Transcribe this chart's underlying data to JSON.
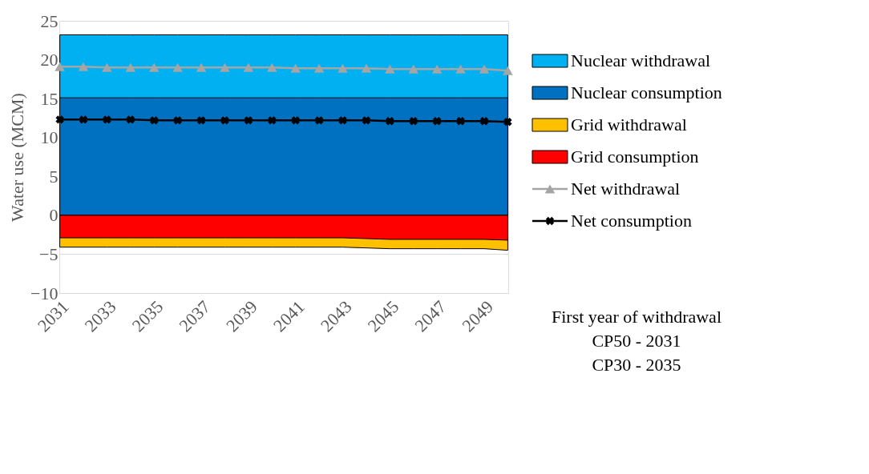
{
  "chart_data": {
    "type": "area",
    "ylabel": "Water use (MCM)",
    "categories": [
      "2031",
      null,
      "2033",
      null,
      "2035",
      null,
      "2037",
      null,
      "2039",
      null,
      "2041",
      null,
      "2043",
      null,
      "2045",
      null,
      "2047",
      null,
      "2049",
      null
    ],
    "ylim": [
      -10,
      25
    ],
    "yticks": [
      -10,
      -5,
      0,
      5,
      10,
      15,
      20,
      25
    ],
    "grid": "y",
    "legend": "right",
    "series": [
      {
        "name": "Nuclear withdrawal",
        "color": "#00b0f0",
        "values": [
          23.2,
          23.2,
          23.2,
          23.2,
          23.2,
          23.2,
          23.2,
          23.2,
          23.2,
          23.2,
          23.2,
          23.2,
          23.2,
          23.2,
          23.2,
          23.2,
          23.2,
          23.2,
          23.2,
          23.2
        ]
      },
      {
        "name": "Nuclear consumption",
        "color": "#0070c0",
        "values": [
          15.1,
          15.1,
          15.1,
          15.1,
          15.1,
          15.1,
          15.1,
          15.1,
          15.1,
          15.1,
          15.1,
          15.1,
          15.1,
          15.1,
          15.1,
          15.1,
          15.1,
          15.1,
          15.1,
          15.1
        ]
      },
      {
        "name": "Grid withdrawal",
        "color": "#ffc000",
        "values": [
          -4.1,
          -4.1,
          -4.1,
          -4.1,
          -4.1,
          -4.1,
          -4.1,
          -4.1,
          -4.1,
          -4.1,
          -4.1,
          -4.1,
          -4.1,
          -4.2,
          -4.3,
          -4.3,
          -4.3,
          -4.3,
          -4.3,
          -4.5
        ]
      },
      {
        "name": "Grid consumption",
        "color": "#ff0000",
        "values": [
          -2.9,
          -2.9,
          -2.9,
          -2.9,
          -2.9,
          -2.9,
          -2.9,
          -2.9,
          -2.9,
          -2.9,
          -2.9,
          -2.9,
          -2.9,
          -3.0,
          -3.1,
          -3.1,
          -3.1,
          -3.1,
          -3.1,
          -3.2
        ]
      },
      {
        "name": "Net withdrawal",
        "type": "line",
        "marker": "triangle",
        "color": "#a5a5a5",
        "values": [
          19.1,
          19.1,
          19.0,
          19.0,
          19.0,
          19.0,
          19.0,
          19.0,
          19.0,
          19.0,
          18.9,
          18.9,
          18.9,
          18.9,
          18.8,
          18.8,
          18.8,
          18.8,
          18.8,
          18.6
        ]
      },
      {
        "name": "Net consumption",
        "type": "line",
        "marker": "cross",
        "color": "#000000",
        "values": [
          12.3,
          12.3,
          12.3,
          12.3,
          12.2,
          12.2,
          12.2,
          12.2,
          12.2,
          12.2,
          12.2,
          12.2,
          12.2,
          12.2,
          12.1,
          12.1,
          12.1,
          12.1,
          12.1,
          12.0
        ]
      }
    ],
    "annotations": [
      "First year of withdrawal",
      "CP50 - 2031",
      "CP30 - 2035"
    ]
  }
}
